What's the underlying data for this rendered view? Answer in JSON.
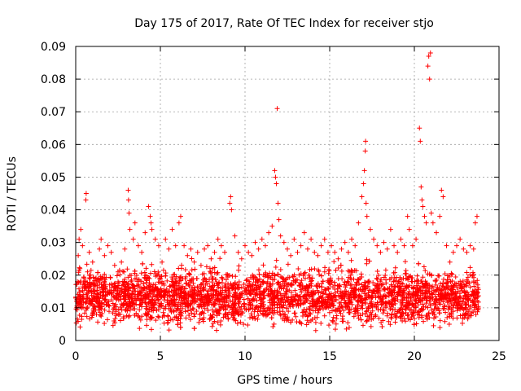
{
  "chart_data": {
    "type": "scatter",
    "title": "Day 175 of 2017, Rate Of TEC Index for receiver stjo",
    "xlabel": "GPS time / hours",
    "ylabel": "ROTI / TECUs",
    "xlim": [
      0,
      25
    ],
    "ylim": [
      0,
      0.09
    ],
    "x_ticks": [
      0,
      5,
      10,
      15,
      20,
      25
    ],
    "x_tick_labels": [
      "0",
      "5",
      "10",
      "15",
      "20",
      "25"
    ],
    "y_ticks": [
      0,
      0.01,
      0.02,
      0.03,
      0.04,
      0.05,
      0.06,
      0.07,
      0.08,
      0.09
    ],
    "y_tick_labels": [
      "0",
      "0.01",
      "0.02",
      "0.03",
      "0.04",
      "0.05",
      "0.06",
      "0.07",
      "0.08",
      "0.09"
    ],
    "grid": true,
    "marker": "+",
    "marker_color": "#ff0000",
    "series": [
      {
        "name": "ROTI",
        "points": [
          [
            0.05,
            0.012
          ],
          [
            0.1,
            0.018
          ],
          [
            0.15,
            0.026
          ],
          [
            0.2,
            0.031
          ],
          [
            0.25,
            0.022
          ],
          [
            0.3,
            0.034
          ],
          [
            0.4,
            0.029
          ],
          [
            0.5,
            0.016
          ],
          [
            0.6,
            0.043
          ],
          [
            0.62,
            0.045
          ],
          [
            0.7,
            0.021
          ],
          [
            0.8,
            0.027
          ],
          [
            1.0,
            0.024
          ],
          [
            1.2,
            0.019
          ],
          [
            1.4,
            0.028
          ],
          [
            1.5,
            0.031
          ],
          [
            1.7,
            0.026
          ],
          [
            1.9,
            0.029
          ],
          [
            2.0,
            0.017
          ],
          [
            2.1,
            0.027
          ],
          [
            2.3,
            0.023
          ],
          [
            2.5,
            0.021
          ],
          [
            2.7,
            0.024
          ],
          [
            2.9,
            0.028
          ],
          [
            3.1,
            0.046
          ],
          [
            3.12,
            0.043
          ],
          [
            3.15,
            0.039
          ],
          [
            3.2,
            0.034
          ],
          [
            3.4,
            0.031
          ],
          [
            3.5,
            0.036
          ],
          [
            3.7,
            0.029
          ],
          [
            3.9,
            0.027
          ],
          [
            4.1,
            0.033
          ],
          [
            4.3,
            0.041
          ],
          [
            4.4,
            0.038
          ],
          [
            4.45,
            0.036
          ],
          [
            4.5,
            0.034
          ],
          [
            4.7,
            0.031
          ],
          [
            4.9,
            0.029
          ],
          [
            5.1,
            0.024
          ],
          [
            5.3,
            0.031
          ],
          [
            5.5,
            0.028
          ],
          [
            5.7,
            0.034
          ],
          [
            5.9,
            0.029
          ],
          [
            6.1,
            0.036
          ],
          [
            6.2,
            0.038
          ],
          [
            6.4,
            0.029
          ],
          [
            6.6,
            0.026
          ],
          [
            6.8,
            0.028
          ],
          [
            7.0,
            0.024
          ],
          [
            7.2,
            0.027
          ],
          [
            7.4,
            0.023
          ],
          [
            7.6,
            0.028
          ],
          [
            7.8,
            0.029
          ],
          [
            8.0,
            0.025
          ],
          [
            8.2,
            0.027
          ],
          [
            8.4,
            0.031
          ],
          [
            8.6,
            0.029
          ],
          [
            8.8,
            0.027
          ],
          [
            9.1,
            0.042
          ],
          [
            9.15,
            0.044
          ],
          [
            9.2,
            0.04
          ],
          [
            9.4,
            0.032
          ],
          [
            9.6,
            0.027
          ],
          [
            9.8,
            0.025
          ],
          [
            10.0,
            0.029
          ],
          [
            10.2,
            0.027
          ],
          [
            10.4,
            0.026
          ],
          [
            10.6,
            0.03
          ],
          [
            10.8,
            0.028
          ],
          [
            11.0,
            0.031
          ],
          [
            11.2,
            0.029
          ],
          [
            11.4,
            0.033
          ],
          [
            11.6,
            0.035
          ],
          [
            11.75,
            0.052
          ],
          [
            11.8,
            0.05
          ],
          [
            11.85,
            0.048
          ],
          [
            11.9,
            0.071
          ],
          [
            11.95,
            0.042
          ],
          [
            12.0,
            0.037
          ],
          [
            12.1,
            0.032
          ],
          [
            12.3,
            0.03
          ],
          [
            12.5,
            0.028
          ],
          [
            12.7,
            0.026
          ],
          [
            12.9,
            0.031
          ],
          [
            13.1,
            0.027
          ],
          [
            13.3,
            0.029
          ],
          [
            13.5,
            0.033
          ],
          [
            13.7,
            0.028
          ],
          [
            13.9,
            0.031
          ],
          [
            14.1,
            0.027
          ],
          [
            14.3,
            0.026
          ],
          [
            14.5,
            0.029
          ],
          [
            14.7,
            0.031
          ],
          [
            14.9,
            0.027
          ],
          [
            15.1,
            0.029
          ],
          [
            15.3,
            0.027
          ],
          [
            15.5,
            0.025
          ],
          [
            15.7,
            0.028
          ],
          [
            15.9,
            0.03
          ],
          [
            16.1,
            0.027
          ],
          [
            16.3,
            0.031
          ],
          [
            16.5,
            0.029
          ],
          [
            16.7,
            0.036
          ],
          [
            16.9,
            0.044
          ],
          [
            17.0,
            0.048
          ],
          [
            17.05,
            0.052
          ],
          [
            17.1,
            0.058
          ],
          [
            17.12,
            0.061
          ],
          [
            17.15,
            0.042
          ],
          [
            17.2,
            0.038
          ],
          [
            17.4,
            0.034
          ],
          [
            17.6,
            0.031
          ],
          [
            17.8,
            0.029
          ],
          [
            18.0,
            0.027
          ],
          [
            18.2,
            0.03
          ],
          [
            18.4,
            0.028
          ],
          [
            18.6,
            0.034
          ],
          [
            18.8,
            0.029
          ],
          [
            19.0,
            0.027
          ],
          [
            19.2,
            0.031
          ],
          [
            19.4,
            0.029
          ],
          [
            19.6,
            0.038
          ],
          [
            19.7,
            0.034
          ],
          [
            19.9,
            0.029
          ],
          [
            20.1,
            0.031
          ],
          [
            20.3,
            0.065
          ],
          [
            20.35,
            0.061
          ],
          [
            20.4,
            0.047
          ],
          [
            20.45,
            0.043
          ],
          [
            20.5,
            0.041
          ],
          [
            20.6,
            0.038
          ],
          [
            20.7,
            0.036
          ],
          [
            20.8,
            0.084
          ],
          [
            20.85,
            0.087
          ],
          [
            20.9,
            0.08
          ],
          [
            20.95,
            0.088
          ],
          [
            21.0,
            0.039
          ],
          [
            21.1,
            0.036
          ],
          [
            21.3,
            0.033
          ],
          [
            21.5,
            0.038
          ],
          [
            21.6,
            0.046
          ],
          [
            21.7,
            0.044
          ],
          [
            21.9,
            0.029
          ],
          [
            22.1,
            0.024
          ],
          [
            22.3,
            0.027
          ],
          [
            22.5,
            0.029
          ],
          [
            22.7,
            0.031
          ],
          [
            22.9,
            0.028
          ],
          [
            23.1,
            0.027
          ],
          [
            23.3,
            0.029
          ],
          [
            23.5,
            0.028
          ],
          [
            23.6,
            0.036
          ],
          [
            23.7,
            0.038
          ]
        ],
        "band": {
          "description_free": true,
          "x_range": [
            0,
            23.8
          ],
          "y_center": 0.0135,
          "y_spread": 0.0105,
          "density_count": 3200
        }
      }
    ]
  }
}
